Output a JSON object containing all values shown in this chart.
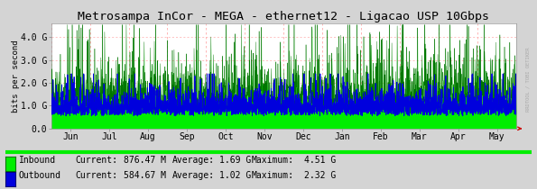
{
  "title": "Metrosampa InCor - MEGA - ethernet12 - Ligacao USP 10Gbps",
  "ylabel": "bits per second",
  "bg_color": "#d4d4d4",
  "plot_bg_color": "#ffffff",
  "grid_color": "#ffaaaa",
  "inbound_color": "#00ee00",
  "inbound_edge_color": "#007700",
  "outbound_color": "#0000dd",
  "ytick_labels": [
    "0.0",
    "1.0 G",
    "2.0 G",
    "3.0 G",
    "4.0 G"
  ],
  "ytick_values": [
    0,
    1000000000,
    2000000000,
    3000000000,
    4000000000
  ],
  "ylim_max": 4600000000,
  "xtick_labels": [
    "Jun",
    "Jul",
    "Aug",
    "Sep",
    "Oct",
    "Nov",
    "Dec",
    "Jan",
    "Feb",
    "Mar",
    "Apr",
    "May"
  ],
  "legend_inbound_label": "Inbound",
  "legend_outbound_label": "Outbound",
  "legend_inbound_current": "876.47 M",
  "legend_inbound_average": "1.69 G",
  "legend_inbound_maximum": "4.51 G",
  "legend_outbound_current": "584.67 M",
  "legend_outbound_average": "1.02 G",
  "legend_outbound_maximum": "2.32 G",
  "rrdtool_text": "RRDTOOL / TOBI OETIKER",
  "arrow_color": "#cc0000",
  "title_fontsize": 9.5,
  "axis_fontsize": 7,
  "legend_fontsize": 7
}
